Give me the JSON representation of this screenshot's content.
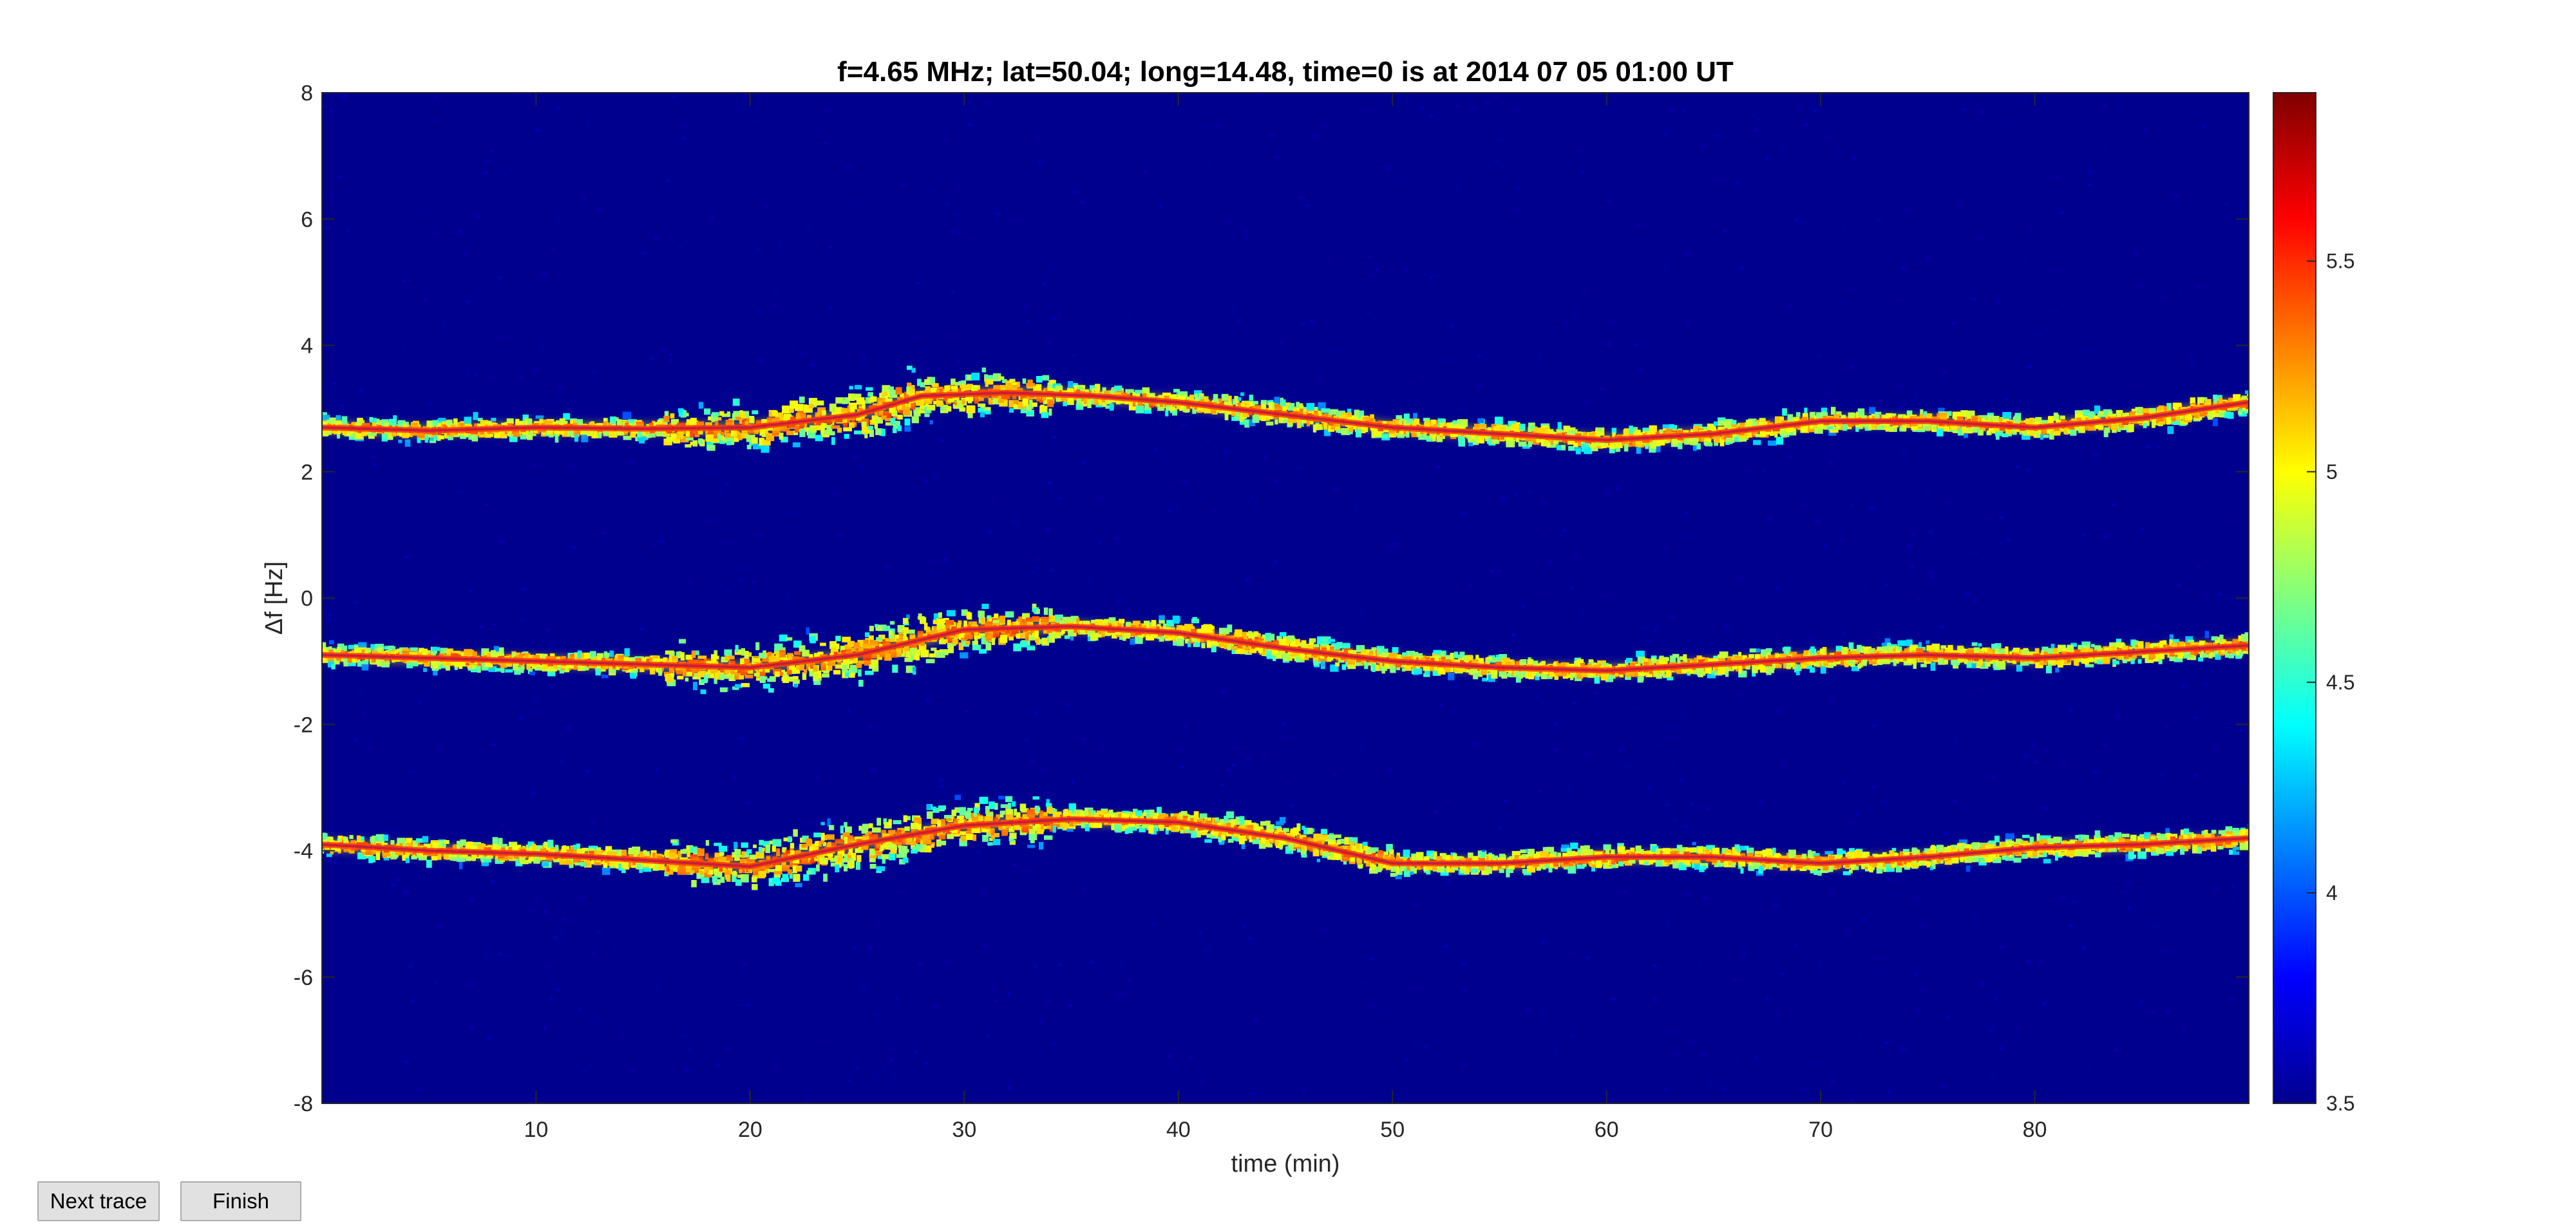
{
  "window": {
    "buttons": {
      "next_trace": "Next trace",
      "finish": "Finish"
    }
  },
  "chart_data": {
    "type": "heatmap",
    "title": "f=4.65 MHz;  lat=50.04; long=14.48, time=0 is at 2014 07 05 01:00 UT",
    "xlabel": "time (min)",
    "ylabel": "Δf [Hz]",
    "xlim": [
      0,
      90
    ],
    "ylim": [
      -8,
      8
    ],
    "xticks": [
      10,
      20,
      30,
      40,
      50,
      60,
      70,
      80
    ],
    "yticks": [
      -8,
      -6,
      -4,
      -2,
      0,
      2,
      4,
      6,
      8
    ],
    "colorbar": {
      "range": [
        3.5,
        5.9
      ],
      "ticks": [
        3.5,
        4,
        4.5,
        5,
        5.5
      ],
      "colormap": "jet"
    },
    "background_color": "#00008f",
    "trace_color": "#c81e3c",
    "series": [
      {
        "x": [
          0,
          5,
          10,
          15,
          20,
          25,
          28,
          32,
          36,
          40,
          45,
          50,
          55,
          60,
          65,
          70,
          75,
          80,
          85,
          90
        ],
        "y": [
          2.7,
          2.65,
          2.7,
          2.68,
          2.7,
          2.9,
          3.2,
          3.25,
          3.2,
          3.1,
          2.9,
          2.7,
          2.6,
          2.5,
          2.6,
          2.8,
          2.8,
          2.7,
          2.85,
          3.1
        ]
      },
      {
        "x": [
          0,
          5,
          10,
          15,
          20,
          25,
          30,
          35,
          40,
          45,
          50,
          55,
          60,
          65,
          70,
          75,
          80,
          85,
          90
        ],
        "y": [
          -0.9,
          -0.95,
          -1.0,
          -1.05,
          -1.1,
          -0.9,
          -0.5,
          -0.45,
          -0.55,
          -0.8,
          -1.0,
          -1.1,
          -1.15,
          -1.05,
          -0.95,
          -0.9,
          -0.95,
          -0.85,
          -0.75
        ]
      },
      {
        "x": [
          0,
          5,
          10,
          15,
          20,
          25,
          30,
          35,
          40,
          45,
          50,
          55,
          60,
          65,
          70,
          75,
          80,
          85,
          90
        ],
        "y": [
          -3.9,
          -4.0,
          -4.05,
          -4.15,
          -4.25,
          -3.9,
          -3.6,
          -3.5,
          -3.55,
          -3.8,
          -4.2,
          -4.2,
          -4.1,
          -4.1,
          -4.2,
          -4.1,
          -3.95,
          -3.9,
          -3.8
        ]
      }
    ]
  }
}
